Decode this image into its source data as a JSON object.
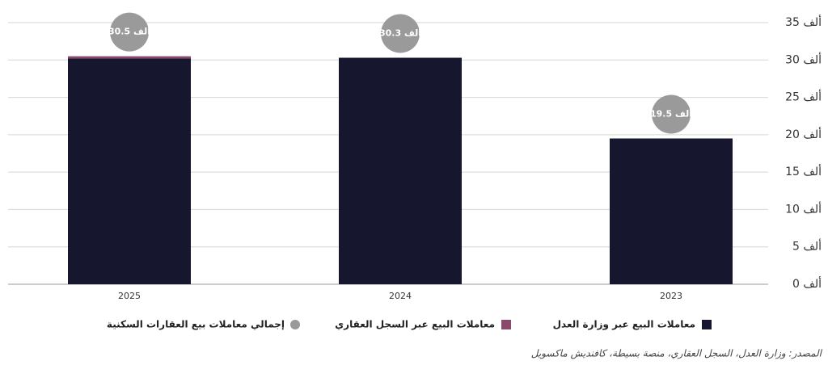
{
  "chart_data": {
    "type": "bar",
    "stacked": true,
    "categories": [
      "2025",
      "2024",
      "2023"
    ],
    "series": [
      {
        "name": "معاملات البيع عبر وزارة العدل",
        "color": "#16162f",
        "values": [
          30.2,
          30.3,
          19.5
        ]
      },
      {
        "name": "معاملات البيع عبر السجل العقاري",
        "color": "#8a4a6b",
        "values": [
          0.3,
          0,
          0
        ]
      },
      {
        "name": "إجمالي معاملات بيع العقارات السكنية",
        "color": "#9a9a9a",
        "kind": "total",
        "values": [
          30.5,
          30.3,
          19.5
        ],
        "value_labels": [
          "30.5 ألف",
          "30.3 ألف",
          "19.5 ألف"
        ]
      }
    ],
    "ylim": [
      0,
      35
    ],
    "yticks": [
      {
        "value": 0,
        "label": "0 ألف"
      },
      {
        "value": 5,
        "label": "5 ألف"
      },
      {
        "value": 10,
        "label": "10 ألف"
      },
      {
        "value": 15,
        "label": "15 ألف"
      },
      {
        "value": 20,
        "label": "20 ألف"
      },
      {
        "value": 25,
        "label": "25 ألف"
      },
      {
        "value": 30,
        "label": "30 ألف"
      },
      {
        "value": 35,
        "label": "35 ألف"
      }
    ],
    "grid": true,
    "source": "المصدر: وزارة العدل، السجل العقاري، منصة بسيطة، كافنديش ماكسويل"
  }
}
